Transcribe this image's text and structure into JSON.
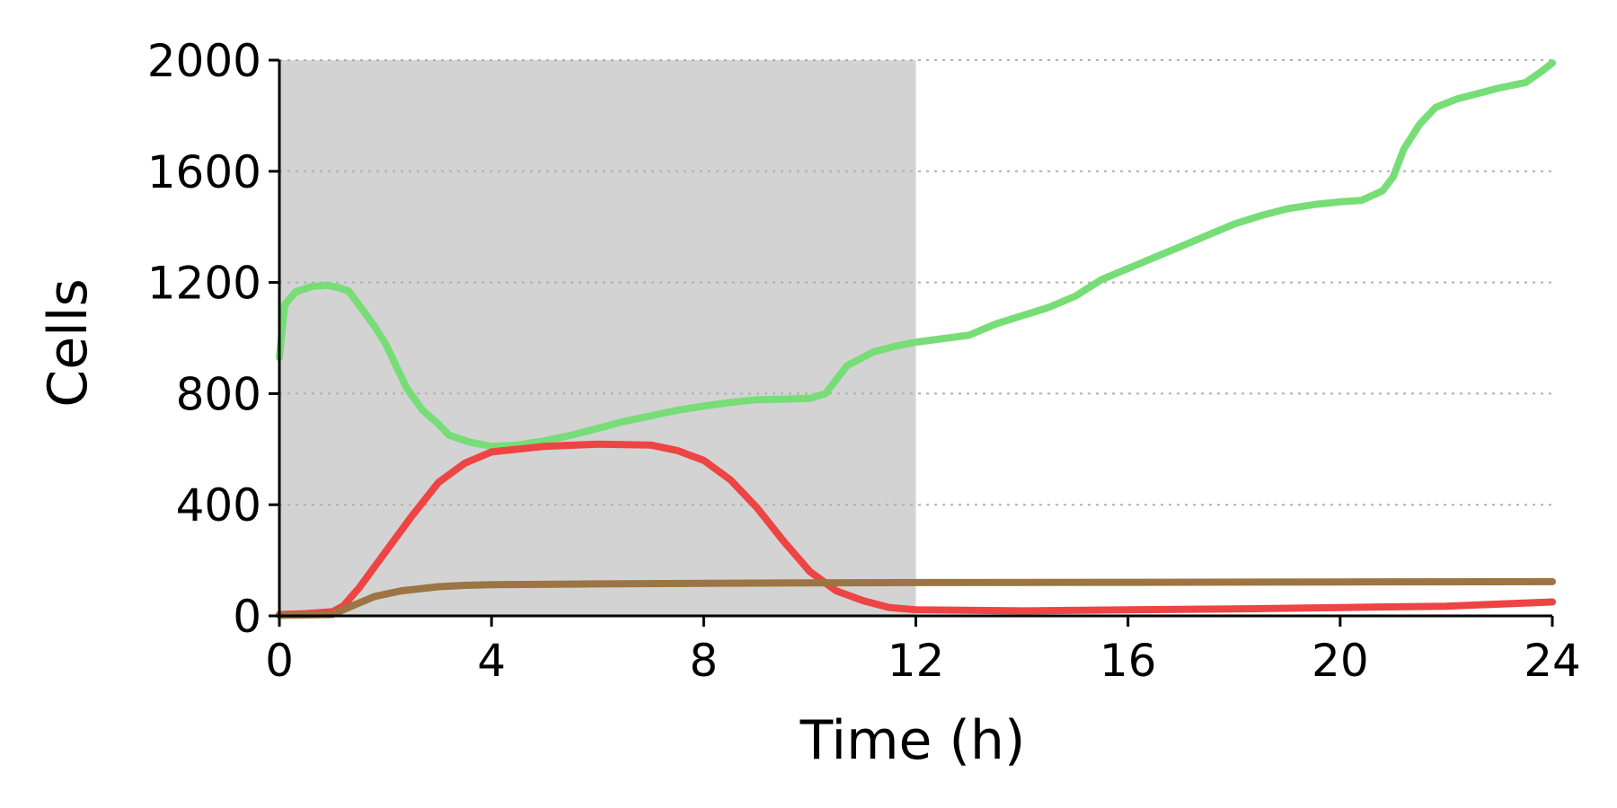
{
  "chart_data": {
    "type": "line",
    "title": "",
    "xlabel": "Time (h)",
    "ylabel": "Cells",
    "xlim": [
      0,
      24
    ],
    "ylim": [
      0,
      2000
    ],
    "xticks": [
      0,
      4,
      8,
      12,
      16,
      20,
      24
    ],
    "yticks": [
      0,
      400,
      800,
      1200,
      1600,
      2000
    ],
    "xtick_labels": [
      "0",
      "4",
      "8",
      "12",
      "16",
      "20",
      "24"
    ],
    "ytick_labels": [
      "0",
      "400",
      "800",
      "1200",
      "1600",
      "2000"
    ],
    "grid": "horizontal dotted",
    "legend": "none",
    "shaded_region": {
      "x_start": 0,
      "x_end": 12,
      "color": "#d3d3d3"
    },
    "series": [
      {
        "color": "#77dd77",
        "points": [
          [
            0,
            930
          ],
          [
            0.1,
            1120
          ],
          [
            0.3,
            1165
          ],
          [
            0.6,
            1185
          ],
          [
            0.9,
            1190
          ],
          [
            1.1,
            1182
          ],
          [
            1.3,
            1170
          ],
          [
            1.5,
            1120
          ],
          [
            1.8,
            1040
          ],
          [
            2.0,
            980
          ],
          [
            2.2,
            900
          ],
          [
            2.4,
            820
          ],
          [
            2.7,
            740
          ],
          [
            3.0,
            690
          ],
          [
            3.2,
            650
          ],
          [
            3.6,
            625
          ],
          [
            4.0,
            610
          ],
          [
            4.5,
            615
          ],
          [
            5.0,
            630
          ],
          [
            5.5,
            650
          ],
          [
            6.0,
            675
          ],
          [
            6.5,
            700
          ],
          [
            7.0,
            720
          ],
          [
            7.5,
            740
          ],
          [
            8.0,
            755
          ],
          [
            8.5,
            768
          ],
          [
            9.0,
            778
          ],
          [
            9.5,
            780
          ],
          [
            10.0,
            783
          ],
          [
            10.3,
            800
          ],
          [
            10.7,
            900
          ],
          [
            11.2,
            950
          ],
          [
            11.6,
            970
          ],
          [
            12.0,
            985
          ],
          [
            12.6,
            1000
          ],
          [
            13.0,
            1010
          ],
          [
            13.5,
            1050
          ],
          [
            14.0,
            1080
          ],
          [
            14.5,
            1110
          ],
          [
            15.0,
            1150
          ],
          [
            15.5,
            1210
          ],
          [
            16.0,
            1250
          ],
          [
            16.5,
            1290
          ],
          [
            17.0,
            1330
          ],
          [
            17.5,
            1370
          ],
          [
            18.0,
            1410
          ],
          [
            18.5,
            1440
          ],
          [
            19.0,
            1465
          ],
          [
            19.5,
            1480
          ],
          [
            20.0,
            1490
          ],
          [
            20.4,
            1495
          ],
          [
            20.8,
            1530
          ],
          [
            21.0,
            1580
          ],
          [
            21.2,
            1680
          ],
          [
            21.5,
            1770
          ],
          [
            21.8,
            1830
          ],
          [
            22.2,
            1860
          ],
          [
            22.6,
            1880
          ],
          [
            23.0,
            1900
          ],
          [
            23.5,
            1920
          ],
          [
            23.8,
            1960
          ],
          [
            24.0,
            1990
          ]
        ]
      },
      {
        "color": "#ee4444",
        "points": [
          [
            0,
            5
          ],
          [
            0.5,
            8
          ],
          [
            1.0,
            15
          ],
          [
            1.2,
            35
          ],
          [
            1.5,
            100
          ],
          [
            2.0,
            230
          ],
          [
            2.5,
            360
          ],
          [
            3.0,
            480
          ],
          [
            3.5,
            550
          ],
          [
            4.0,
            590
          ],
          [
            5.0,
            610
          ],
          [
            6.0,
            618
          ],
          [
            7.0,
            615
          ],
          [
            7.5,
            595
          ],
          [
            8.0,
            560
          ],
          [
            8.5,
            490
          ],
          [
            9.0,
            390
          ],
          [
            9.5,
            270
          ],
          [
            10.0,
            160
          ],
          [
            10.5,
            90
          ],
          [
            11.0,
            55
          ],
          [
            11.5,
            30
          ],
          [
            12.0,
            22
          ],
          [
            14.0,
            18
          ],
          [
            16.0,
            22
          ],
          [
            18.0,
            25
          ],
          [
            20.0,
            30
          ],
          [
            22.0,
            35
          ],
          [
            24.0,
            50
          ]
        ]
      },
      {
        "color": "#9b7543",
        "points": [
          [
            0,
            2
          ],
          [
            1.0,
            5
          ],
          [
            1.3,
            30
          ],
          [
            1.8,
            70
          ],
          [
            2.3,
            90
          ],
          [
            3.0,
            105
          ],
          [
            3.5,
            110
          ],
          [
            4.0,
            112
          ],
          [
            6.0,
            115
          ],
          [
            8.0,
            117
          ],
          [
            10.0,
            119
          ],
          [
            12.0,
            120
          ],
          [
            16.0,
            121
          ],
          [
            20.0,
            122
          ],
          [
            24.0,
            123
          ]
        ]
      }
    ]
  }
}
